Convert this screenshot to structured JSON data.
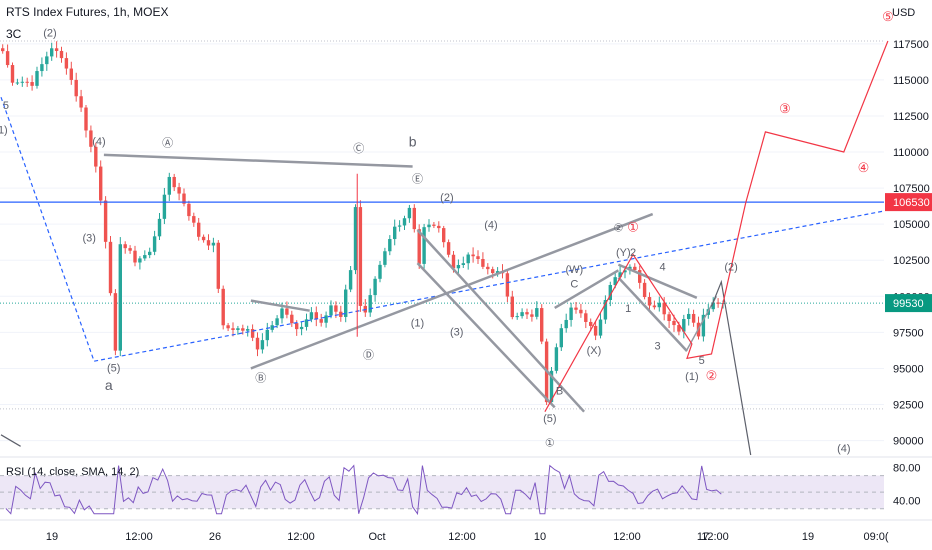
{
  "header": {
    "symbol": "RTS Index Futures, 1h, MOEX",
    "sub_label": "3C",
    "currency": "USD"
  },
  "rsi_label": "RSI (14, close, SMA, 14, 2)",
  "colors": {
    "up": "#26a69a",
    "down": "#ef5350",
    "red_line": "#f23645",
    "blue_line": "#2962ff",
    "gray_line": "#9598a1",
    "rsi_line": "#7e57c2",
    "rsi_band": "#ede7f6",
    "highlight_106530": "#f23645",
    "highlight_99530": "#089981"
  },
  "chart_data": {
    "type": "candlestick",
    "y_axis": {
      "min": 89000,
      "max": 119500,
      "ticks": [
        117500,
        115000,
        112500,
        110000,
        107500,
        105000,
        102500,
        100000,
        97500,
        95000,
        92500,
        90000
      ]
    },
    "price_labels": {
      "hline": "106530",
      "last": "99530"
    },
    "x_ticks": [
      "19",
      "12:00",
      "26",
      "12:00",
      "Oct",
      "12:00",
      "10",
      "12:00",
      "17",
      "12:00",
      "19",
      "09:0("
    ],
    "rsi_ticks": [
      "80.00",
      "40.00"
    ],
    "rsi_range": [
      20,
      90
    ],
    "wave_labels": [
      {
        "t": "(2)",
        "x": 10,
        "y": 118000
      },
      {
        "t": "5",
        "x": 1,
        "y": 113000
      },
      {
        "t": "(1)",
        "x": 0,
        "y": 111300
      },
      {
        "t": "(4)",
        "x": 20,
        "y": 110500
      },
      {
        "t": "Ⓐ",
        "x": 34,
        "y": 110400
      },
      {
        "t": "Ⓒ",
        "x": 73,
        "y": 110000
      },
      {
        "t": "b",
        "x": 84,
        "y": 110400
      },
      {
        "t": "Ⓔ",
        "x": 85,
        "y": 107900
      },
      {
        "t": "(2)",
        "x": 91,
        "y": 106600
      },
      {
        "t": "(4)",
        "x": 100,
        "y": 104700
      },
      {
        "t": "(3)",
        "x": 18,
        "y": 103800
      },
      {
        "t": "(1)",
        "x": 85,
        "y": 97900
      },
      {
        "t": "(3)",
        "x": 93,
        "y": 97300
      },
      {
        "t": "Ⓓ",
        "x": 75,
        "y": 95700
      },
      {
        "t": "(5)",
        "x": 23,
        "y": 94800
      },
      {
        "t": "Ⓑ",
        "x": 53,
        "y": 94100
      },
      {
        "t": "a",
        "x": 22,
        "y": 93500
      },
      {
        "t": "(W)",
        "x": 117,
        "y": 101600
      },
      {
        "t": "C",
        "x": 117,
        "y": 100600
      },
      {
        "t": "B",
        "x": 114,
        "y": 93200
      },
      {
        "t": "(5)",
        "x": 112,
        "y": 91300
      },
      {
        "t": "①",
        "x": 112,
        "y": 89600
      },
      {
        "t": "(X)",
        "x": 121,
        "y": 96000
      },
      {
        "t": "(Y)",
        "x": 127,
        "y": 102800
      },
      {
        "t": "2",
        "x": 129,
        "y": 102800
      },
      {
        "t": "4",
        "x": 135,
        "y": 101800
      },
      {
        "t": "1",
        "x": 128,
        "y": 98900
      },
      {
        "t": "3",
        "x": 134,
        "y": 96300
      },
      {
        "t": "5",
        "x": 143,
        "y": 95300
      },
      {
        "t": "(1)",
        "x": 141,
        "y": 94200
      },
      {
        "t": "(2)",
        "x": 149,
        "y": 101800
      },
      {
        "t": "(4)",
        "x": 172,
        "y": 89200
      },
      {
        "t": "②",
        "x": 126,
        "y": 104500
      }
    ],
    "red_labels": [
      {
        "t": "①",
        "x": 129,
        "y": 104500
      },
      {
        "t": "②",
        "x": 145,
        "y": 94200
      },
      {
        "t": "③",
        "x": 160,
        "y": 112700
      },
      {
        "t": "④",
        "x": 176,
        "y": 108600
      },
      {
        "t": "⑤",
        "x": 181,
        "y": 119100
      }
    ]
  }
}
